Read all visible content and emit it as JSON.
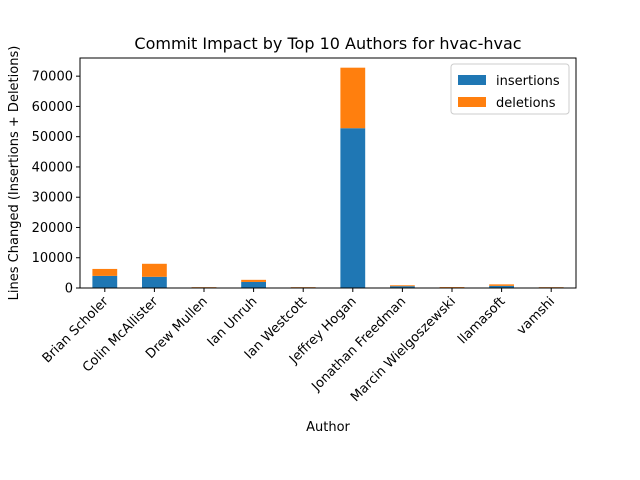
{
  "chart_data": {
    "type": "bar",
    "stacked": true,
    "title": "Commit Impact by Top 10 Authors for hvac-hvac",
    "xlabel": "Author",
    "ylabel": "Lines Changed (Insertions + Deletions)",
    "categories": [
      "Brian Scholer",
      "Colin McAllister",
      "Drew Mullen",
      "Ian Unruh",
      "Ian Westcott",
      "Jeffrey Hogan",
      "Jonathan Freedman",
      "Marcin Wielgoszewski",
      "llamasoft",
      "vamshi"
    ],
    "series": [
      {
        "name": "insertions",
        "color": "#1f77b4",
        "values": [
          4000,
          3700,
          200,
          2000,
          200,
          52800,
          600,
          100,
          700,
          200
        ]
      },
      {
        "name": "deletions",
        "color": "#ff7f0e",
        "values": [
          2300,
          4300,
          100,
          700,
          100,
          20000,
          300,
          200,
          500,
          100
        ]
      }
    ],
    "ylim": [
      0,
      76000
    ],
    "yticks": [
      0,
      10000,
      20000,
      30000,
      40000,
      50000,
      60000,
      70000
    ],
    "grid": false,
    "legend_position": "top-right"
  }
}
